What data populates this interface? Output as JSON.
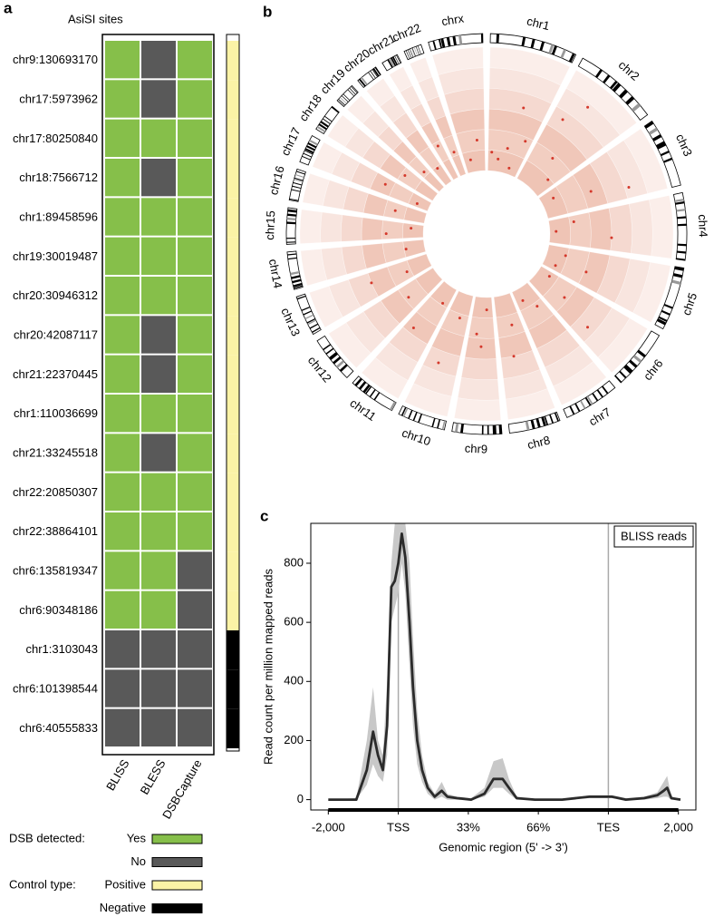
{
  "chart_data": [
    {
      "type": "heatmap",
      "panel": "a",
      "title": "AsiSI sites",
      "categories": [
        "chr9:130693170",
        "chr17:5973962",
        "chr17:80250840",
        "chr18:7566712",
        "chr1:89458596",
        "chr19:30019487",
        "chr20:30946312",
        "chr20:42087117",
        "chr21:22370445",
        "chr1:110036699",
        "chr21:33245518",
        "chr22:20850307",
        "chr22:38864101",
        "chr6:135819347",
        "chr6:90348186",
        "chr1:3103043",
        "chr6:101398544",
        "chr6:40555833"
      ],
      "columns": [
        "BLISS",
        "BLESS",
        "DSBCapture"
      ],
      "values": [
        [
          "Yes",
          "No",
          "Yes"
        ],
        [
          "Yes",
          "No",
          "Yes"
        ],
        [
          "Yes",
          "Yes",
          "Yes"
        ],
        [
          "Yes",
          "No",
          "Yes"
        ],
        [
          "Yes",
          "Yes",
          "Yes"
        ],
        [
          "Yes",
          "Yes",
          "Yes"
        ],
        [
          "Yes",
          "Yes",
          "Yes"
        ],
        [
          "Yes",
          "No",
          "Yes"
        ],
        [
          "Yes",
          "No",
          "Yes"
        ],
        [
          "Yes",
          "Yes",
          "Yes"
        ],
        [
          "Yes",
          "No",
          "Yes"
        ],
        [
          "Yes",
          "Yes",
          "Yes"
        ],
        [
          "Yes",
          "Yes",
          "Yes"
        ],
        [
          "Yes",
          "Yes",
          "No"
        ],
        [
          "Yes",
          "Yes",
          "No"
        ],
        [
          "No",
          "No",
          "No"
        ],
        [
          "No",
          "No",
          "No"
        ],
        [
          "No",
          "No",
          "No"
        ]
      ],
      "colors": {
        "Yes": "#86bf4a",
        "No": "#595959"
      },
      "control": [
        "Positive",
        "Positive",
        "Positive",
        "Positive",
        "Positive",
        "Positive",
        "Positive",
        "Positive",
        "Positive",
        "Positive",
        "Positive",
        "Positive",
        "Positive",
        "Positive",
        "Positive",
        "Negative",
        "Negative",
        "Negative"
      ],
      "control_colors": {
        "Positive": "#fbf3a6",
        "Negative": "#000000"
      },
      "legend": [
        {
          "label": "DSB detected:",
          "entries": [
            "Yes",
            "No"
          ]
        },
        {
          "label": "Control type:",
          "entries": [
            "Positive",
            "Negative"
          ]
        }
      ]
    },
    {
      "type": "circos",
      "panel": "b",
      "chromosomes": [
        {
          "name": "chr1",
          "length": 249,
          "points": [
            [
              0.1,
              0.15
            ],
            [
              0.3,
              0.1
            ],
            [
              0.5,
              0.2
            ],
            [
              0.7,
              0.05
            ],
            [
              0.85,
              0.3
            ],
            [
              0.6,
              0.55
            ]
          ]
        },
        {
          "name": "chr2",
          "length": 243,
          "points": [
            [
              0.2,
              0.6
            ],
            [
              0.5,
              0.3
            ],
            [
              0.8,
              0.15
            ],
            [
              0.4,
              0.8
            ]
          ]
        },
        {
          "name": "chr3",
          "length": 198,
          "points": [
            [
              0.3,
              0.1
            ],
            [
              0.6,
              0.4
            ],
            [
              0.8,
              0.7
            ]
          ]
        },
        {
          "name": "chr4",
          "length": 191,
          "points": [
            [
              0.2,
              0.2
            ],
            [
              0.5,
              0.05
            ],
            [
              0.7,
              0.5
            ]
          ]
        },
        {
          "name": "chr5",
          "length": 181,
          "points": [
            [
              0.3,
              0.15
            ],
            [
              0.6,
              0.35
            ],
            [
              0.8,
              0.1
            ]
          ]
        },
        {
          "name": "chr6",
          "length": 171,
          "points": [
            [
              0.2,
              0.1
            ],
            [
              0.5,
              0.3
            ],
            [
              0.7,
              0.6
            ]
          ]
        },
        {
          "name": "chr7",
          "length": 159,
          "points": [
            [
              0.3,
              0.2
            ],
            [
              0.7,
              0.1
            ]
          ]
        },
        {
          "name": "chr8",
          "length": 146,
          "points": [
            [
              0.4,
              0.25
            ],
            [
              0.6,
              0.5
            ]
          ]
        },
        {
          "name": "chr9",
          "length": 141,
          "points": [
            [
              0.3,
              0.1
            ],
            [
              0.5,
              0.4
            ],
            [
              0.7,
              0.3
            ]
          ]
        },
        {
          "name": "chr10",
          "length": 136,
          "points": [
            [
              0.4,
              0.2
            ],
            [
              0.6,
              0.6
            ]
          ]
        },
        {
          "name": "chr11",
          "length": 135,
          "points": [
            [
              0.3,
              0.15
            ],
            [
              0.7,
              0.45
            ]
          ]
        },
        {
          "name": "chr12",
          "length": 133,
          "points": [
            [
              0.5,
              0.3
            ]
          ]
        },
        {
          "name": "chr13",
          "length": 115,
          "points": [
            [
              0.4,
              0.2
            ],
            [
              0.6,
              0.5
            ]
          ]
        },
        {
          "name": "chr14",
          "length": 107,
          "points": [
            [
              0.5,
              0.15
            ]
          ]
        },
        {
          "name": "chr15",
          "length": 103,
          "points": [
            [
              0.3,
              0.3
            ],
            [
              0.7,
              0.1
            ]
          ]
        },
        {
          "name": "chr16",
          "length": 90,
          "points": [
            [
              0.5,
              0.25
            ]
          ]
        },
        {
          "name": "chr17",
          "length": 81,
          "points": [
            [
              0.3,
              0.1
            ],
            [
              0.6,
              0.4
            ]
          ]
        },
        {
          "name": "chr18",
          "length": 78,
          "points": [
            [
              0.5,
              0.3
            ]
          ]
        },
        {
          "name": "chr19",
          "length": 59,
          "points": [
            [
              0.5,
              0.2
            ]
          ]
        },
        {
          "name": "chr20",
          "length": 63,
          "points": [
            [
              0.5,
              0.15
            ]
          ]
        },
        {
          "name": "chr21",
          "length": 48,
          "points": [
            [
              0.5,
              0.3
            ]
          ]
        },
        {
          "name": "chr22",
          "length": 51,
          "points": [
            [
              0.5,
              0.2
            ]
          ]
        },
        {
          "name": "chrx",
          "length": 155,
          "points": [
            [
              0.3,
              0.1
            ],
            [
              0.7,
              0.25
            ]
          ]
        }
      ],
      "track_color": "#e08a6c",
      "point_color": "#d4382b"
    },
    {
      "type": "line",
      "panel": "c",
      "xlabel": "Genomic region (5' -> 3')",
      "ylabel": "Read count per million mapped reads",
      "x": [
        0,
        0.4,
        0.55,
        0.64,
        0.71,
        0.78,
        0.84,
        0.9,
        0.95,
        1.0,
        1.05,
        1.1,
        1.16,
        1.21,
        1.27,
        1.34,
        1.42,
        1.52,
        1.62,
        1.7,
        1.84,
        2.04,
        2.23,
        2.36,
        2.49,
        2.58,
        2.69,
        2.95,
        3.34,
        3.73,
        4.05,
        4.25,
        4.51,
        4.7,
        4.79,
        4.84,
        4.9,
        5.03
      ],
      "series": [
        {
          "name": "BLISS reads",
          "color": "#2b2b2b",
          "values": [
            0,
            0,
            100,
            230,
            150,
            100,
            250,
            720,
            740,
            800,
            900,
            820,
            600,
            380,
            200,
            100,
            40,
            10,
            30,
            10,
            5,
            0,
            20,
            70,
            70,
            40,
            5,
            0,
            0,
            10,
            10,
            0,
            5,
            15,
            30,
            40,
            5,
            0
          ]
        }
      ],
      "band": {
        "color": "#c8c8c8",
        "upper": [
          0,
          5,
          200,
          380,
          200,
          150,
          400,
          800,
          935,
          935,
          935,
          935,
          800,
          550,
          300,
          150,
          60,
          20,
          60,
          20,
          10,
          5,
          40,
          130,
          140,
          70,
          10,
          0,
          0,
          15,
          15,
          5,
          10,
          25,
          60,
          80,
          10,
          0
        ],
        "lower": [
          0,
          0,
          50,
          120,
          80,
          60,
          150,
          600,
          650,
          700,
          800,
          700,
          450,
          250,
          120,
          60,
          20,
          0,
          10,
          0,
          0,
          0,
          10,
          40,
          40,
          20,
          0,
          0,
          0,
          5,
          5,
          0,
          0,
          5,
          10,
          10,
          0,
          0
        ]
      },
      "xlim": [
        -0.25,
        5.25
      ],
      "ylim": [
        -35,
        935
      ],
      "xticks": [
        {
          "value": 0,
          "label": "-2,000"
        },
        {
          "value": 1,
          "label": "TSS"
        },
        {
          "value": 2,
          "label": "33%"
        },
        {
          "value": 3,
          "label": "66%"
        },
        {
          "value": 4,
          "label": "TES"
        },
        {
          "value": 5,
          "label": "2,000"
        }
      ],
      "yticks": [
        0,
        200,
        400,
        600,
        800
      ],
      "vlines": [
        1,
        4
      ],
      "legend": "upper right"
    }
  ]
}
